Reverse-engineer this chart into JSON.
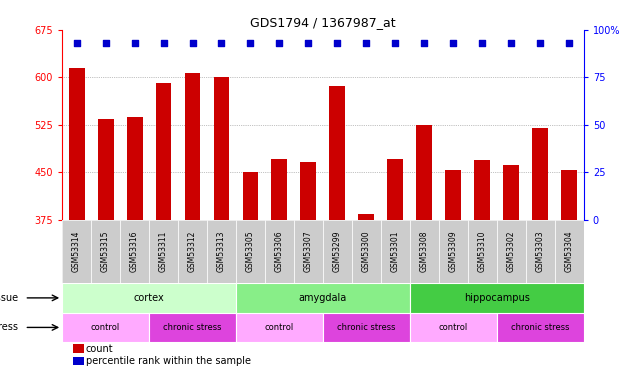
{
  "title": "GDS1794 / 1367987_at",
  "samples": [
    "GSM53314",
    "GSM53315",
    "GSM53316",
    "GSM53311",
    "GSM53312",
    "GSM53313",
    "GSM53305",
    "GSM53306",
    "GSM53307",
    "GSM53299",
    "GSM53300",
    "GSM53301",
    "GSM53308",
    "GSM53309",
    "GSM53310",
    "GSM53302",
    "GSM53303",
    "GSM53304"
  ],
  "counts": [
    615,
    535,
    537,
    592,
    607,
    601,
    450,
    471,
    466,
    587,
    385,
    471,
    525,
    453,
    470,
    462,
    520,
    453
  ],
  "ylim_left": [
    375,
    675
  ],
  "ylim_right": [
    0,
    100
  ],
  "yticks_left": [
    375,
    450,
    525,
    600,
    675
  ],
  "yticks_right": [
    0,
    25,
    50,
    75,
    100
  ],
  "bar_color": "#cc0000",
  "dot_color": "#0000cc",
  "chart_bg": "#ffffff",
  "tissue_groups": [
    {
      "label": "cortex",
      "start": 0,
      "end": 6,
      "color": "#ccffcc"
    },
    {
      "label": "amygdala",
      "start": 6,
      "end": 12,
      "color": "#88ee88"
    },
    {
      "label": "hippocampus",
      "start": 12,
      "end": 18,
      "color": "#44cc44"
    }
  ],
  "stress_groups": [
    {
      "label": "control",
      "start": 0,
      "end": 3,
      "color": "#ffaaff"
    },
    {
      "label": "chronic stress",
      "start": 3,
      "end": 6,
      "color": "#dd44dd"
    },
    {
      "label": "control",
      "start": 6,
      "end": 9,
      "color": "#ffaaff"
    },
    {
      "label": "chronic stress",
      "start": 9,
      "end": 12,
      "color": "#dd44dd"
    },
    {
      "label": "control",
      "start": 12,
      "end": 15,
      "color": "#ffaaff"
    },
    {
      "label": "chronic stress",
      "start": 15,
      "end": 18,
      "color": "#dd44dd"
    }
  ],
  "tissue_label": "tissue",
  "stress_label": "stress",
  "legend_count": "count",
  "legend_percentile": "percentile rank within the sample",
  "xticklabel_bg": "#cccccc",
  "dot_size": 18
}
